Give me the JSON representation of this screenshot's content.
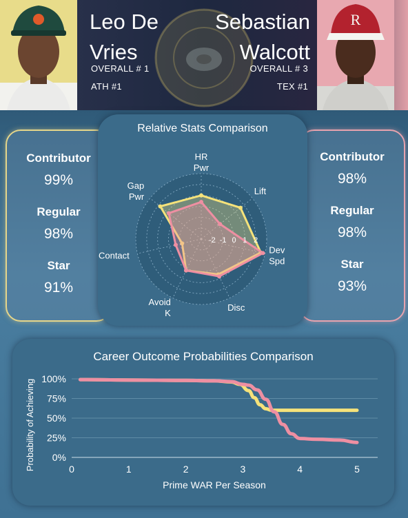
{
  "players": [
    {
      "name_line1": "Leo De",
      "name_line2": "Vries",
      "overall": "OVERALL # 1",
      "team_rank": "ATH #1",
      "color": "#f5e27a",
      "stats": [
        {
          "label": "Contributor",
          "value": "99%"
        },
        {
          "label": "Regular",
          "value": "98%"
        },
        {
          "label": "Star",
          "value": "91%"
        }
      ]
    },
    {
      "name_line1": "Sebastian",
      "name_line2": "Walcott",
      "overall": "OVERALL # 3",
      "team_rank": "TEX #1",
      "color": "#ee8fa2",
      "stats": [
        {
          "label": "Contributor",
          "value": "98%"
        },
        {
          "label": "Regular",
          "value": "98%"
        },
        {
          "label": "Star",
          "value": "93%"
        }
      ]
    }
  ],
  "chart_data": [
    {
      "type": "radar",
      "title": "Relative Stats Comparison",
      "axes": [
        "HR Pwr",
        "Lift",
        "Dev Spd",
        "Disc",
        "Avoid K",
        "Contact",
        "Gap Pwr"
      ],
      "ticks": [
        "-2",
        "-1",
        "0",
        "1",
        "2"
      ],
      "range": [
        -3,
        3
      ],
      "series": [
        {
          "name": "Leo De Vries",
          "values": [
            1.0,
            1.6,
            2.6,
            0.6,
            0.2,
            -1.2,
            1.8
          ]
        },
        {
          "name": "Sebastian Walcott",
          "values": [
            0.4,
            -0.8,
            2.8,
            0.8,
            0.2,
            -0.6,
            0.8
          ]
        }
      ]
    },
    {
      "type": "line",
      "title": "Career Outcome Probabilities Comparison",
      "xlabel": "Prime WAR Per Season",
      "ylabel": "Probability of Achieving",
      "xlim": [
        0,
        5
      ],
      "ylim": [
        0,
        100
      ],
      "xticks": [
        "0",
        "1",
        "2",
        "3",
        "4",
        "5"
      ],
      "yticks": [
        "0%",
        "25%",
        "50%",
        "75%",
        "100%"
      ],
      "series": [
        {
          "name": "Leo De Vries",
          "x": [
            0.15,
            1,
            2,
            2.5,
            2.8,
            2.95,
            3.1,
            3.2,
            3.3,
            3.4,
            3.5,
            3.7,
            4,
            4.5,
            5
          ],
          "y": [
            99,
            98.5,
            98,
            97.5,
            96,
            93,
            85,
            76,
            67,
            62,
            60,
            60,
            60,
            60,
            60
          ]
        },
        {
          "name": "Sebastian Walcott",
          "x": [
            0.15,
            1,
            2,
            2.5,
            2.8,
            3.0,
            3.1,
            3.25,
            3.4,
            3.55,
            3.7,
            3.85,
            4.0,
            4.3,
            4.7,
            5
          ],
          "y": [
            99,
            98.5,
            98,
            97.5,
            96.5,
            93,
            92,
            86,
            74,
            58,
            42,
            30,
            24,
            23,
            22,
            19
          ]
        }
      ]
    }
  ],
  "colors": {
    "leo": "#f5e27a",
    "walcott": "#ee8fa2",
    "grid": "#8fb4cc"
  }
}
